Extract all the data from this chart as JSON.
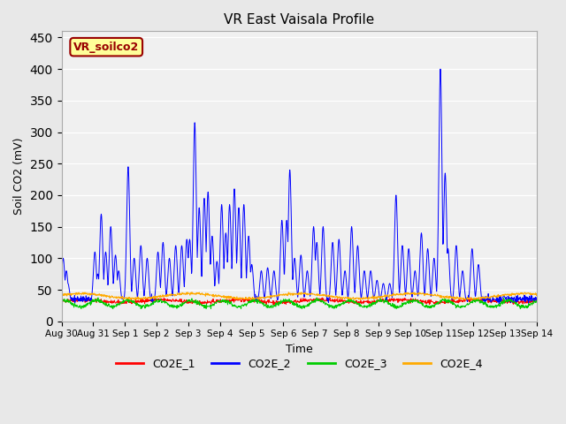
{
  "title": "VR East Vaisala Profile",
  "xlabel": "Time",
  "ylabel": "Soil CO2 (mV)",
  "annotation": "VR_soilco2",
  "ylim": [
    0,
    460
  ],
  "yticks": [
    0,
    50,
    100,
    150,
    200,
    250,
    300,
    350,
    400,
    450
  ],
  "xtick_labels": [
    "Aug 30",
    "Aug 31",
    "Sep 1",
    "Sep 2",
    "Sep 3",
    "Sep 4",
    "Sep 5",
    "Sep 6",
    "Sep 7",
    "Sep 8",
    "Sep 9",
    "Sep 10",
    "Sep 11",
    "Sep 12",
    "Sep 13",
    "Sep 14"
  ],
  "xtick_positions": [
    0,
    1,
    2,
    3,
    4,
    5,
    6,
    7,
    8,
    9,
    10,
    11,
    12,
    13,
    14,
    15
  ],
  "legend_labels": [
    "CO2E_1",
    "CO2E_2",
    "CO2E_3",
    "CO2E_4"
  ],
  "colors": {
    "CO2E_1": "#ff0000",
    "CO2E_2": "#0000ff",
    "CO2E_3": "#00cc00",
    "CO2E_4": "#ffaa00"
  },
  "fig_facecolor": "#e8e8e8",
  "ax_facecolor": "#f0f0f0",
  "annotation_facecolor": "#ffff99",
  "annotation_edgecolor": "#990000",
  "annotation_textcolor": "#990000",
  "seed": 42,
  "n_points": 1500,
  "spike_positions": [
    [
      0.05,
      100
    ],
    [
      0.15,
      80
    ],
    [
      0.2,
      60
    ],
    [
      1.05,
      110
    ],
    [
      1.15,
      75
    ],
    [
      1.25,
      170
    ],
    [
      1.4,
      110
    ],
    [
      1.55,
      150
    ],
    [
      1.7,
      105
    ],
    [
      1.8,
      80
    ],
    [
      2.1,
      245
    ],
    [
      2.3,
      100
    ],
    [
      2.5,
      120
    ],
    [
      2.7,
      100
    ],
    [
      3.05,
      110
    ],
    [
      3.2,
      125
    ],
    [
      3.4,
      100
    ],
    [
      3.6,
      120
    ],
    [
      3.8,
      120
    ],
    [
      3.95,
      130
    ],
    [
      4.05,
      130
    ],
    [
      4.2,
      315
    ],
    [
      4.35,
      180
    ],
    [
      4.5,
      195
    ],
    [
      4.62,
      205
    ],
    [
      4.75,
      135
    ],
    [
      4.9,
      95
    ],
    [
      5.05,
      185
    ],
    [
      5.18,
      140
    ],
    [
      5.3,
      185
    ],
    [
      5.45,
      210
    ],
    [
      5.6,
      180
    ],
    [
      5.75,
      185
    ],
    [
      5.9,
      135
    ],
    [
      6.0,
      90
    ],
    [
      6.3,
      80
    ],
    [
      6.5,
      85
    ],
    [
      6.7,
      80
    ],
    [
      6.95,
      160
    ],
    [
      7.1,
      160
    ],
    [
      7.2,
      240
    ],
    [
      7.35,
      100
    ],
    [
      7.55,
      105
    ],
    [
      7.75,
      80
    ],
    [
      7.95,
      150
    ],
    [
      8.05,
      125
    ],
    [
      8.25,
      150
    ],
    [
      8.55,
      125
    ],
    [
      8.75,
      130
    ],
    [
      8.95,
      80
    ],
    [
      9.15,
      150
    ],
    [
      9.35,
      120
    ],
    [
      9.55,
      80
    ],
    [
      9.75,
      80
    ],
    [
      9.95,
      65
    ],
    [
      10.15,
      60
    ],
    [
      10.35,
      60
    ],
    [
      10.55,
      200
    ],
    [
      10.75,
      120
    ],
    [
      10.95,
      115
    ],
    [
      11.15,
      80
    ],
    [
      11.35,
      140
    ],
    [
      11.55,
      115
    ],
    [
      11.75,
      100
    ],
    [
      11.95,
      400
    ],
    [
      12.1,
      235
    ],
    [
      12.2,
      115
    ],
    [
      12.45,
      120
    ],
    [
      12.65,
      80
    ],
    [
      12.95,
      115
    ],
    [
      13.15,
      90
    ],
    [
      13.45,
      35
    ],
    [
      13.65,
      35
    ],
    [
      13.95,
      40
    ],
    [
      14.45,
      35
    ]
  ]
}
